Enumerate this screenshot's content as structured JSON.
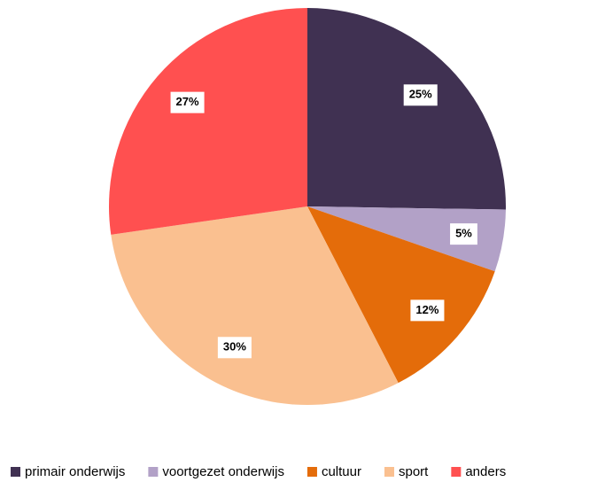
{
  "chart_data": {
    "type": "pie",
    "categories": [
      "primair onderwijs",
      "voortgezet onderwijs",
      "cultuur",
      "sport",
      "anders"
    ],
    "values": [
      25,
      5,
      12,
      30,
      27
    ],
    "value_labels": [
      "25%",
      "5%",
      "12%",
      "30%",
      "27%"
    ],
    "colors": [
      "#403152",
      "#b2a1c7",
      "#e46c0a",
      "#fac090",
      "#ff5050"
    ],
    "legend": "bottom"
  }
}
